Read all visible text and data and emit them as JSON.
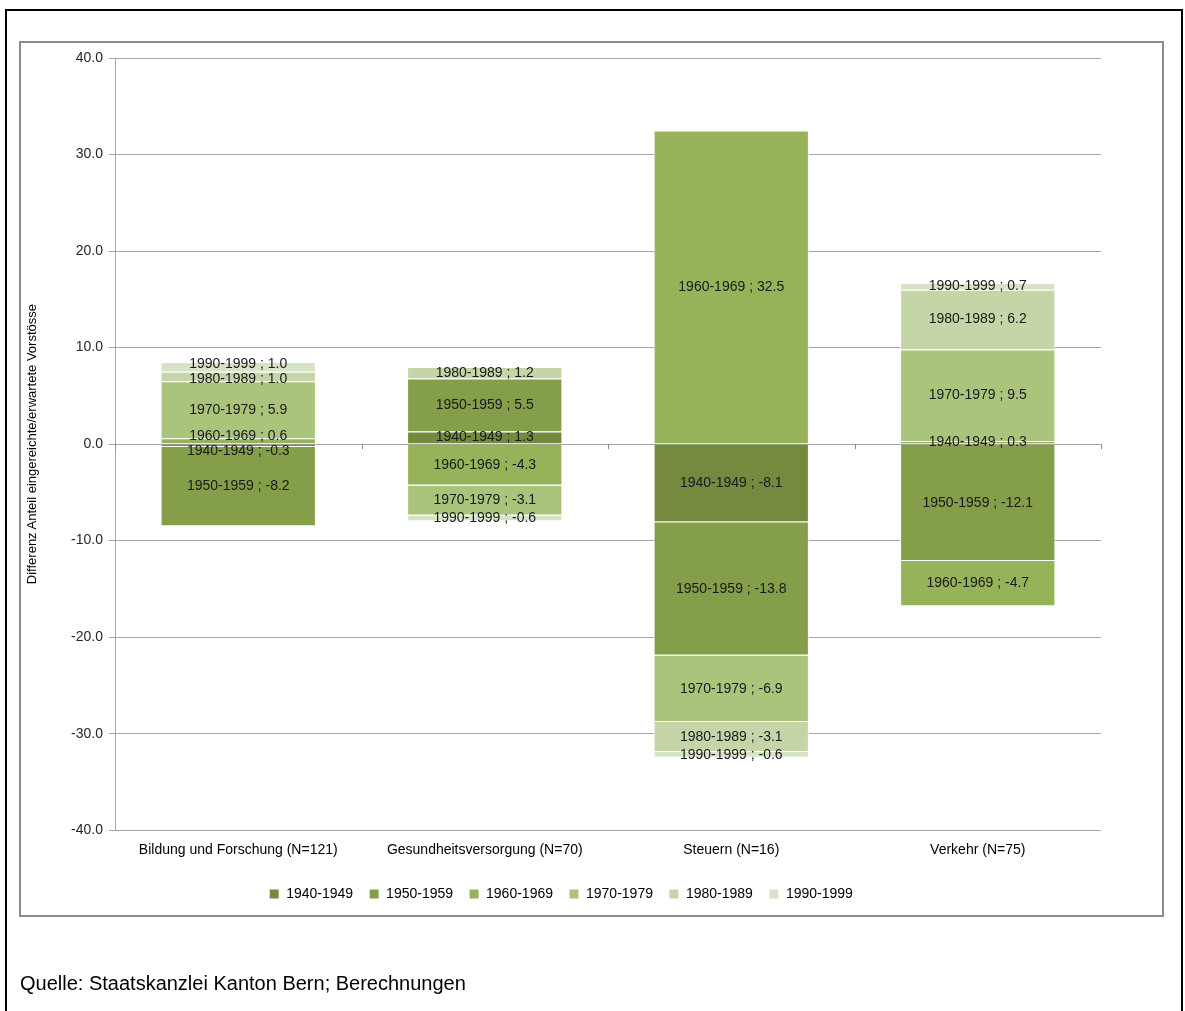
{
  "chart_data": {
    "type": "bar",
    "stacked": true,
    "ylabel": "Differenz Anteil eingereichte/erwartete Vorstösse",
    "categories": [
      "Bildung und Forschung (N=121)",
      "Gesundheitsversorgung (N=70)",
      "Steuern (N=16)",
      "Verkehr (N=75)"
    ],
    "series": [
      {
        "name": "1940-1949",
        "color": "#738a3f",
        "values": [
          -0.3,
          1.3,
          -8.1,
          0.3
        ],
        "value_labels": [
          "1940-1949 ; -0.3",
          "1940-1949 ; 1.3",
          "1940-1949 ; -8.1",
          "1940-1949 ; 0.3"
        ]
      },
      {
        "name": "1950-1959",
        "color": "#849e4a",
        "values": [
          -8.2,
          5.5,
          -13.8,
          -12.1
        ],
        "value_labels": [
          "1950-1959 ; -8.2",
          "1950-1959 ; 5.5",
          "1950-1959 ; -13.8",
          "1950-1959 ; -12.1"
        ]
      },
      {
        "name": "1960-1969",
        "color": "#97b35a",
        "values": [
          0.6,
          -4.3,
          32.5,
          -4.7
        ],
        "value_labels": [
          "1960-1969 ; 0.6",
          "1960-1969 ; -4.3",
          "1960-1969 ; 32.5",
          "1960-1969 ; -4.7"
        ]
      },
      {
        "name": "1970-1979",
        "color": "#abc47c",
        "values": [
          5.9,
          -3.1,
          -6.9,
          9.5
        ],
        "value_labels": [
          "1970-1979 ; 5.9",
          "1970-1979 ; -3.1",
          "1970-1979 ; -6.9",
          "1970-1979 ; 9.5"
        ]
      },
      {
        "name": "1980-1989",
        "color": "#c4d5a7",
        "values": [
          1.0,
          1.2,
          -3.1,
          6.2
        ],
        "value_labels": [
          "1980-1989 ; 1.0",
          "1980-1989 ; 1.2",
          "1980-1989 ; -3.1",
          "1980-1989 ; 6.2"
        ]
      },
      {
        "name": "1990-1999",
        "color": "#d7e3c6",
        "values": [
          1.0,
          -0.6,
          -0.6,
          0.7
        ],
        "value_labels": [
          "1990-1999 ; 1.0",
          "1990-1999 ; -0.6",
          "1990-1999 ; -0.6",
          "1990-1999 ; 0.7"
        ]
      }
    ],
    "ylim": [
      -40,
      40
    ],
    "yticks": [
      {
        "value": -40,
        "label": "-40.0"
      },
      {
        "value": -30,
        "label": "-30.0"
      },
      {
        "value": -20,
        "label": "-20.0"
      },
      {
        "value": -10,
        "label": "-10.0"
      },
      {
        "value": 0,
        "label": "0.0"
      },
      {
        "value": 10,
        "label": "10.0"
      },
      {
        "value": 20,
        "label": "20.0"
      },
      {
        "value": 30,
        "label": "30.0"
      },
      {
        "value": 40,
        "label": "40.0"
      }
    ],
    "grid": "y",
    "legend": "bottom",
    "annotations": [
      "Quelle: Staatskanzlei Kanton Bern; Berechnungen"
    ]
  }
}
